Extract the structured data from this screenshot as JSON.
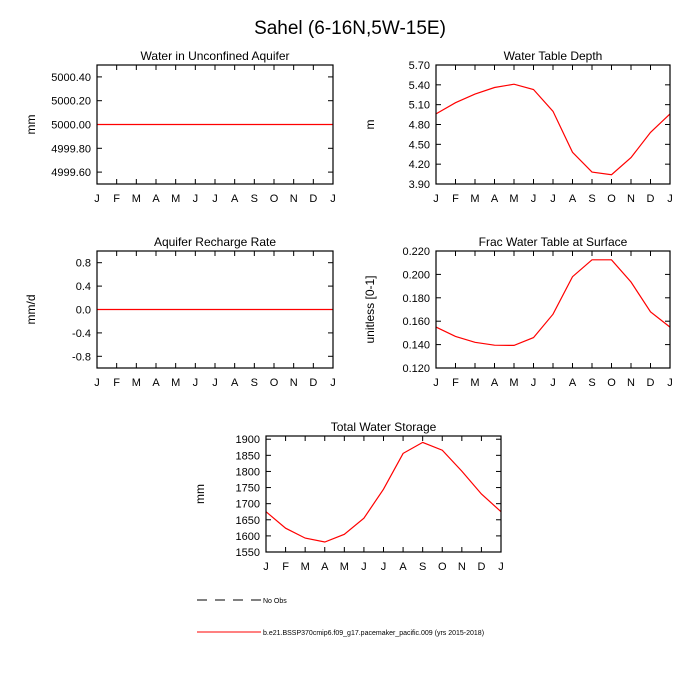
{
  "figure": {
    "title": "Sahel (6-16N,5W-15E)"
  },
  "legend": {
    "entries": [
      {
        "label": "No Obs",
        "color": "#000000",
        "style": "dashed"
      },
      {
        "label": "b.e21.BSSP370cmip6.f09_g17.pacemaker_pacific.009 (yrs 2015-2018)",
        "color": "#ff0000",
        "style": "solid"
      }
    ]
  },
  "chart_data": [
    {
      "type": "line",
      "title": "Water in Unconfined Aquifer",
      "xlabel": "",
      "ylabel": "mm",
      "categories": [
        "J",
        "F",
        "M",
        "A",
        "M",
        "J",
        "J",
        "A",
        "S",
        "O",
        "N",
        "D",
        "J"
      ],
      "ylim": [
        4999.5,
        5000.5
      ],
      "yticks": [
        4999.6,
        4999.8,
        5000.0,
        5000.2,
        5000.4
      ],
      "ytick_labels": [
        "4999.60",
        "4999.80",
        "5000.00",
        "5000.20",
        "5000.40"
      ],
      "series": [
        {
          "color": "#ff0000",
          "values": [
            5000,
            5000,
            5000,
            5000,
            5000,
            5000,
            5000,
            5000,
            5000,
            5000,
            5000,
            5000,
            5000
          ]
        }
      ]
    },
    {
      "type": "line",
      "title": "Water Table Depth",
      "xlabel": "",
      "ylabel": "m",
      "categories": [
        "J",
        "F",
        "M",
        "A",
        "M",
        "J",
        "J",
        "A",
        "S",
        "O",
        "N",
        "D",
        "J"
      ],
      "ylim": [
        3.9,
        5.7
      ],
      "yticks": [
        3.9,
        4.2,
        4.5,
        4.8,
        5.1,
        5.4,
        5.7
      ],
      "ytick_labels": [
        "3.90",
        "4.20",
        "4.50",
        "4.80",
        "5.10",
        "5.40",
        "5.70"
      ],
      "series": [
        {
          "color": "#ff0000",
          "values": [
            4.96,
            5.13,
            5.26,
            5.36,
            5.41,
            5.33,
            5.0,
            4.38,
            4.08,
            4.04,
            4.3,
            4.68,
            4.96
          ]
        }
      ]
    },
    {
      "type": "line",
      "title": "Aquifer Recharge Rate",
      "xlabel": "",
      "ylabel": "mm/d",
      "categories": [
        "J",
        "F",
        "M",
        "A",
        "M",
        "J",
        "J",
        "A",
        "S",
        "O",
        "N",
        "D",
        "J"
      ],
      "ylim": [
        -1.0,
        1.0
      ],
      "yticks": [
        -0.8,
        -0.4,
        0.0,
        0.4,
        0.8
      ],
      "ytick_labels": [
        "-0.8",
        "-0.4",
        "0.0",
        "0.4",
        "0.8"
      ],
      "series": [
        {
          "color": "#ff0000",
          "values": [
            0,
            0,
            0,
            0,
            0,
            0,
            0,
            0,
            0,
            0,
            0,
            0,
            0
          ]
        }
      ]
    },
    {
      "type": "line",
      "title": "Frac Water Table at Surface",
      "xlabel": "",
      "ylabel": "unitless [0-1]",
      "categories": [
        "J",
        "F",
        "M",
        "A",
        "M",
        "J",
        "J",
        "A",
        "S",
        "O",
        "N",
        "D",
        "J"
      ],
      "ylim": [
        0.12,
        0.22
      ],
      "yticks": [
        0.12,
        0.14,
        0.16,
        0.18,
        0.2,
        0.22
      ],
      "ytick_labels": [
        "0.120",
        "0.140",
        "0.160",
        "0.180",
        "0.200",
        "0.220"
      ],
      "series": [
        {
          "color": "#ff0000",
          "values": [
            0.155,
            0.147,
            0.142,
            0.1395,
            0.1393,
            0.146,
            0.166,
            0.198,
            0.2125,
            0.2125,
            0.1935,
            0.168,
            0.155
          ]
        }
      ]
    },
    {
      "type": "line",
      "title": "Total Water Storage",
      "xlabel": "",
      "ylabel": "mm",
      "categories": [
        "J",
        "F",
        "M",
        "A",
        "M",
        "J",
        "J",
        "A",
        "S",
        "O",
        "N",
        "D",
        "J"
      ],
      "ylim": [
        1550,
        1910
      ],
      "yticks": [
        1550,
        1600,
        1650,
        1700,
        1750,
        1800,
        1850,
        1900
      ],
      "ytick_labels": [
        "1550",
        "1600",
        "1650",
        "1700",
        "1750",
        "1800",
        "1850",
        "1900"
      ],
      "series": [
        {
          "color": "#ff0000",
          "values": [
            1675,
            1624,
            1593,
            1581,
            1605,
            1655,
            1745,
            1856,
            1890,
            1866,
            1801,
            1730,
            1675
          ]
        }
      ]
    }
  ]
}
